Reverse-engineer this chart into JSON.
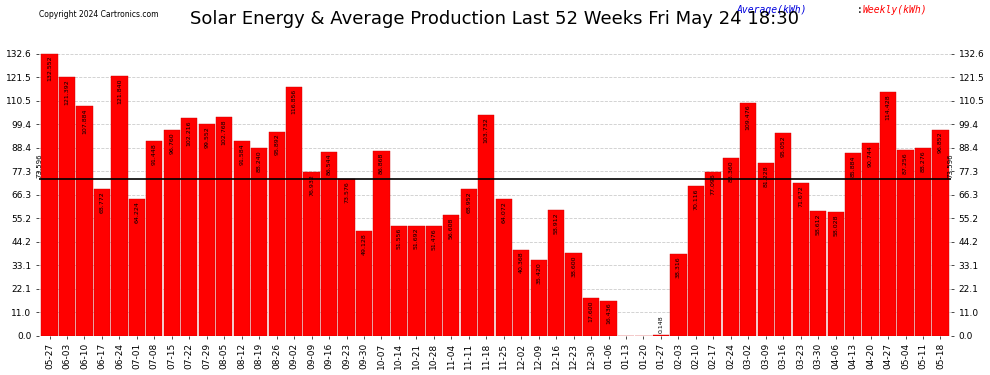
{
  "title": "Solar Energy & Average Production Last 52 Weeks Fri May 24 18:30",
  "copyright": "Copyright 2024 Cartronics.com",
  "average_line": 73.596,
  "bar_color": "#ff0000",
  "bar_edge_color": "#cc0000",
  "average_line_color": "#000000",
  "background_color": "#ffffff",
  "grid_color": "#cccccc",
  "legend_average_color": "#0000dd",
  "legend_weekly_color": "#ff0000",
  "yticks": [
    0.0,
    11.0,
    22.1,
    33.1,
    44.2,
    55.2,
    66.3,
    77.3,
    88.4,
    99.4,
    110.5,
    121.5,
    132.6
  ],
  "categories": [
    "05-27",
    "06-03",
    "06-10",
    "06-17",
    "06-24",
    "07-01",
    "07-08",
    "07-15",
    "07-22",
    "07-29",
    "08-05",
    "08-12",
    "08-19",
    "08-26",
    "09-02",
    "09-09",
    "09-16",
    "09-23",
    "09-30",
    "10-07",
    "10-14",
    "10-21",
    "10-28",
    "11-04",
    "11-11",
    "11-18",
    "11-25",
    "12-02",
    "12-09",
    "12-16",
    "12-23",
    "12-30",
    "01-06",
    "01-13",
    "01-20",
    "01-27",
    "02-03",
    "02-10",
    "02-17",
    "02-24",
    "03-02",
    "03-09",
    "03-16",
    "03-23",
    "03-30",
    "04-06",
    "04-13",
    "04-20",
    "04-27",
    "05-04",
    "05-11",
    "05-18"
  ],
  "values": [
    132.552,
    121.392,
    107.884,
    68.772,
    121.84,
    64.224,
    91.448,
    96.76,
    102.216,
    99.552,
    102.768,
    91.584,
    88.24,
    95.892,
    116.856,
    76.932,
    86.544,
    73.576,
    49.128,
    86.868,
    51.556,
    51.692,
    51.476,
    56.608,
    68.952,
    103.732,
    64.072,
    40.368,
    35.42,
    58.912,
    38.6,
    17.6,
    16.436,
    0.0,
    0.0,
    0.148,
    38.316,
    70.116,
    77.096,
    83.36,
    109.476,
    81.228,
    95.052,
    71.672,
    58.612,
    58.028,
    85.884,
    90.744,
    114.428,
    87.256,
    88.276,
    96.852
  ],
  "title_fontsize": 13,
  "tick_fontsize": 6.5,
  "value_fontsize": 4.5,
  "figure_bg": "#ffffff",
  "ymax": 143.0
}
